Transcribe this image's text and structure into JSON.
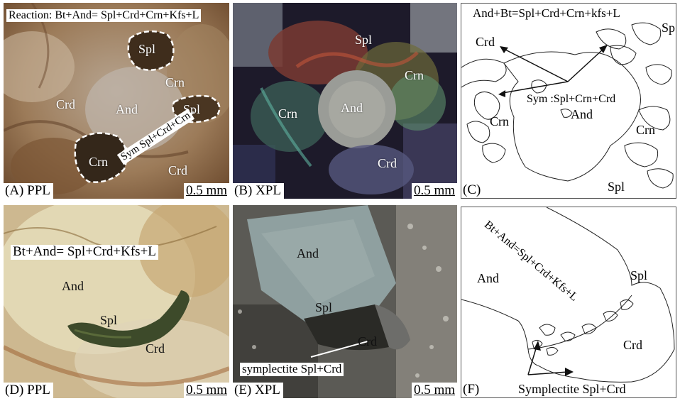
{
  "panels": {
    "a": {
      "caption": "(A) PPL",
      "scale": "0.5 mm",
      "reaction": "Reaction: Bt+And= Spl+Crd+Crn+Kfs+L",
      "labels": {
        "spl1": "Spl",
        "spl2": "Spl",
        "crn1": "Crn",
        "crn2": "Crn",
        "crd1": "Crd",
        "crd2": "Crd",
        "and": "And"
      },
      "arrow_label": "Sym Spl+Crd+Crn"
    },
    "b": {
      "caption": "(B) XPL",
      "scale": "0.5 mm",
      "labels": {
        "spl": "Spl",
        "crn1": "Crn",
        "crn2": "Crn",
        "and": "And",
        "crd": "Crd"
      }
    },
    "c": {
      "caption": "(C)",
      "reaction": "And+Bt=Spl+Crd+Crn+kfs+L",
      "labels": {
        "sp": "Sp",
        "crd": "Crd",
        "sym": "Sym :Spl+Crn+Crd",
        "crn1": "Crn",
        "and": "And",
        "crn2": "Crn",
        "spl": "Spl"
      }
    },
    "d": {
      "caption": "(D) PPL",
      "scale": "0.5 mm",
      "reaction": "Bt+And= Spl+Crd+Kfs+L",
      "labels": {
        "and": "And",
        "spl": "Spl",
        "crd": "Crd"
      }
    },
    "e": {
      "caption": "(E) XPL",
      "scale": "0.5 mm",
      "labels": {
        "and": "And",
        "spl": "Spl",
        "crd": "Crd"
      },
      "symplectite": "symplectite Spl+Crd"
    },
    "f": {
      "caption": "(F)",
      "reaction": "Bt+And=Spl+Crd+Kfs+L",
      "labels": {
        "and": "And",
        "spl": "Spl",
        "crd": "Crd"
      },
      "symplectite": "Symplectite Spl+Crd"
    }
  }
}
